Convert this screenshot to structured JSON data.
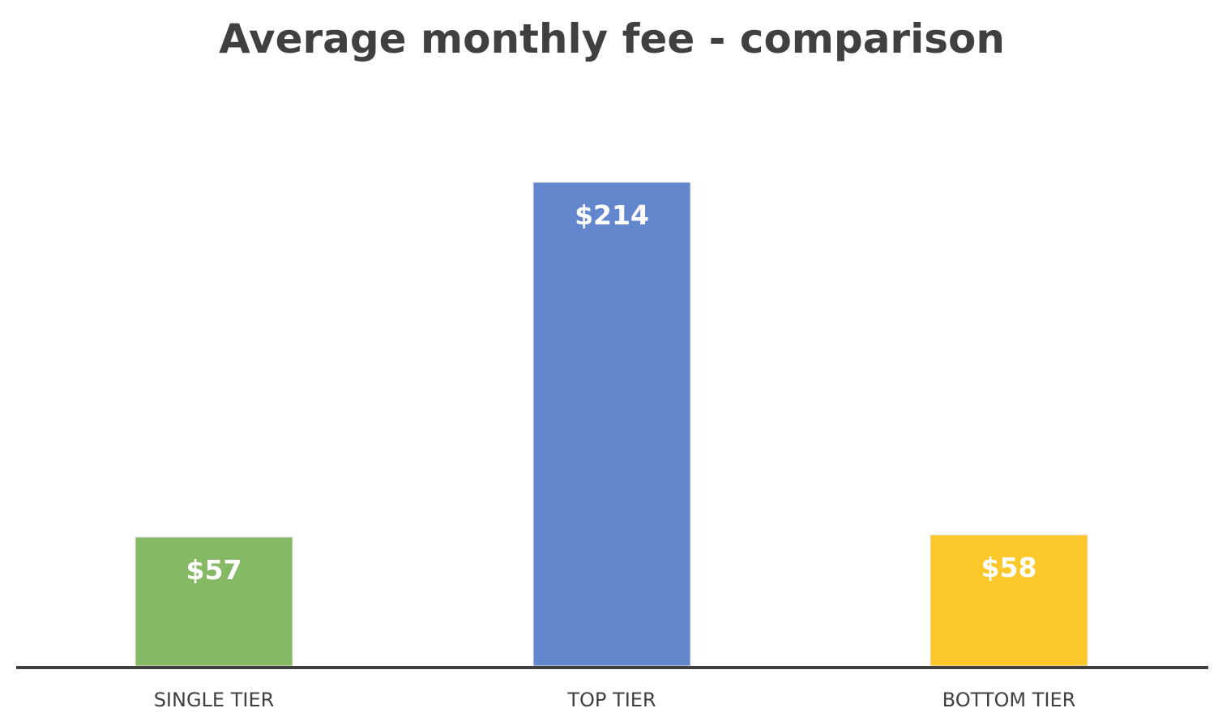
{
  "chart_data": {
    "type": "bar",
    "title": "Average monthly fee - comparison",
    "xlabel": "",
    "ylabel": "",
    "categories": [
      "SINGLE TIER",
      "TOP TIER",
      "BOTTOM TIER"
    ],
    "values": [
      57,
      214,
      58
    ],
    "data_labels": [
      "$57",
      "$214",
      "$58"
    ],
    "colors": [
      "#86b963",
      "#6387cc",
      "#fcc82a"
    ],
    "axis_color": "#404040",
    "ylim": [
      0,
      230
    ],
    "grid": false,
    "legend": "none"
  }
}
